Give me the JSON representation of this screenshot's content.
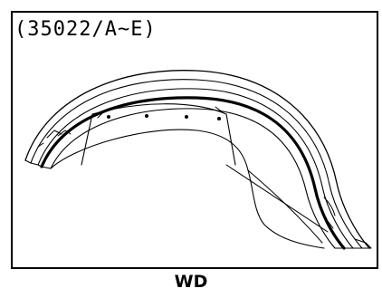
{
  "diagram": {
    "part_code": "(35022/A~E)",
    "caption": "WD",
    "part_icon": "fender-line-drawing"
  }
}
